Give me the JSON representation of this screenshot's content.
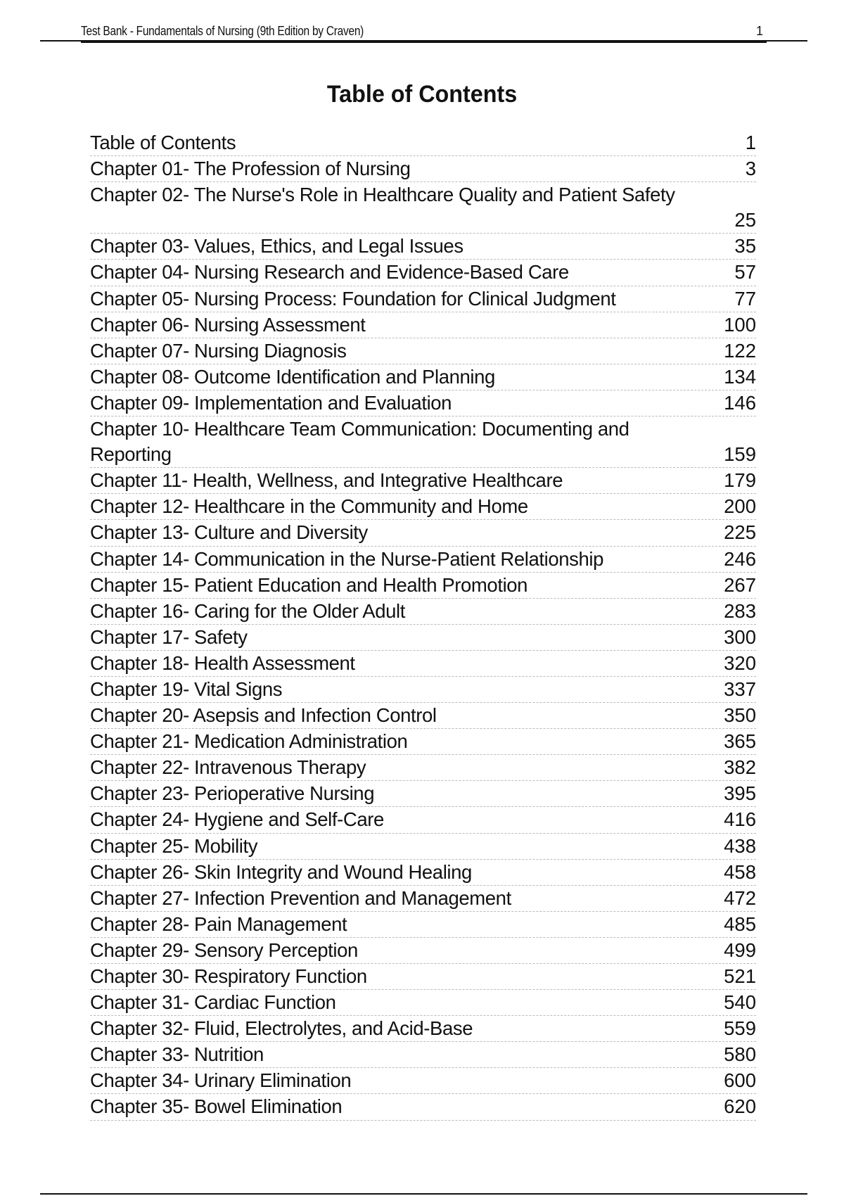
{
  "header": {
    "title": "Test Bank - Fundamentals of Nursing (9th Edition by Craven)",
    "page_number": "1"
  },
  "document_title": "Table of Contents",
  "entries": [
    {
      "label": "Table of Contents",
      "page": "1"
    },
    {
      "label": "Chapter 01- The Profession of Nursing",
      "page": "3"
    },
    {
      "label": "Chapter 02- The Nurse's Role in Healthcare Quality and Patient Safety",
      "page": "25",
      "page_on_next_line": true
    },
    {
      "label": "Chapter 03- Values, Ethics, and Legal Issues",
      "page": "35"
    },
    {
      "label": "Chapter 04- Nursing Research and Evidence-Based Care",
      "page": "57"
    },
    {
      "label": "Chapter 05- Nursing Process: Foundation for Clinical Judgment",
      "page": "77"
    },
    {
      "label": "Chapter 06- Nursing Assessment",
      "page": "100"
    },
    {
      "label": "Chapter 07- Nursing Diagnosis",
      "page": "122"
    },
    {
      "label": "Chapter 08- Outcome Identification and Planning",
      "page": "134"
    },
    {
      "label": "Chapter 09- Implementation and Evaluation",
      "page": "146"
    },
    {
      "label": "Chapter 10- Healthcare Team Communication: Documenting and Reporting",
      "page": "159"
    },
    {
      "label": "Chapter 11- Health, Wellness, and Integrative Healthcare",
      "page": "179"
    },
    {
      "label": "Chapter 12- Healthcare in the Community and Home",
      "page": "200"
    },
    {
      "label": "Chapter 13- Culture and Diversity",
      "page": "225"
    },
    {
      "label": "Chapter 14- Communication in the Nurse-Patient Relationship",
      "page": "246"
    },
    {
      "label": "Chapter 15- Patient Education and Health Promotion",
      "page": "267"
    },
    {
      "label": "Chapter 16- Caring for the Older Adult",
      "page": "283"
    },
    {
      "label": "Chapter 17- Safety",
      "page": "300"
    },
    {
      "label": "Chapter 18- Health Assessment",
      "page": "320"
    },
    {
      "label": "Chapter 19- Vital Signs",
      "page": "337"
    },
    {
      "label": "Chapter 20- Asepsis and Infection Control",
      "page": "350"
    },
    {
      "label": "Chapter 21- Medication Administration",
      "page": "365"
    },
    {
      "label": "Chapter 22- Intravenous Therapy",
      "page": "382"
    },
    {
      "label": "Chapter 23- Perioperative Nursing",
      "page": "395"
    },
    {
      "label": "Chapter 24- Hygiene and Self-Care",
      "page": "416"
    },
    {
      "label": "Chapter 25- Mobility",
      "page": "438"
    },
    {
      "label": "Chapter 26- Skin Integrity and Wound Healing",
      "page": "458"
    },
    {
      "label": "Chapter 27- Infection Prevention and Management",
      "page": "472"
    },
    {
      "label": "Chapter 28- Pain Management",
      "page": "485"
    },
    {
      "label": "Chapter 29- Sensory Perception",
      "page": "499"
    },
    {
      "label": "Chapter 30- Respiratory Function",
      "page": "521"
    },
    {
      "label": "Chapter 31- Cardiac Function",
      "page": "540"
    },
    {
      "label": "Chapter 32- Fluid, Electrolytes, and Acid-Base",
      "page": "559"
    },
    {
      "label": "Chapter 33- Nutrition",
      "page": "580"
    },
    {
      "label": "Chapter 34- Urinary Elimination",
      "page": "600"
    },
    {
      "label": "Chapter 35- Bowel Elimination",
      "page": "620"
    }
  ]
}
